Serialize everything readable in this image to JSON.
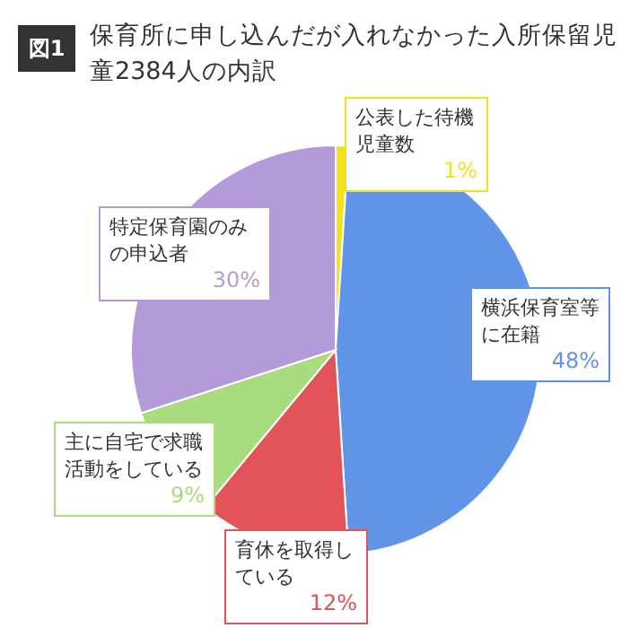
{
  "chart_data": {
    "type": "pie",
    "title": "保育所に申し込んだが入れなかった入所保留児童2384人の内訳",
    "annotations": [
      "図1"
    ],
    "categories": [
      "公表した待機児童数",
      "横浜保育室等に在籍",
      "育休を取得している",
      "主に自宅で求職活動をしている",
      "特定保育園のみの申込者"
    ],
    "values": [
      1,
      48,
      12,
      9,
      30
    ],
    "colors": [
      "#f2e21c",
      "#5f94e6",
      "#e2545a",
      "#a9dc7e",
      "#b49ad9"
    ],
    "value_labels": [
      "1%",
      "48%",
      "12%",
      "9%",
      "30%"
    ]
  }
}
